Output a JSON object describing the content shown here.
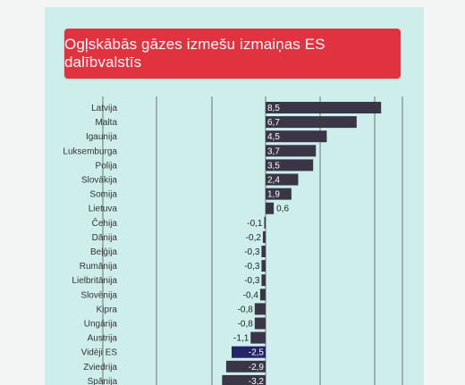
{
  "chart_data": {
    "type": "bar",
    "orientation": "horizontal",
    "title": "Ogļskābās gāzes izmešu izmaiņas ES dalībvalstīs",
    "categories": [
      "Latvija",
      "Malta",
      "Igaunija",
      "Luksemburga",
      "Polija",
      "Slovākija",
      "Somija",
      "Lietuva",
      "Čehija",
      "Dānija",
      "Beļģija",
      "Rumānija",
      "Lielbritānija",
      "Slovēnija",
      "Kipra",
      "Ungārija",
      "Austrija",
      "Vidēji ES",
      "Zviedrija",
      "Spānija"
    ],
    "values": [
      8.5,
      6.7,
      4.5,
      3.7,
      3.5,
      2.4,
      1.9,
      0.6,
      -0.1,
      -0.2,
      -0.3,
      -0.3,
      -0.3,
      -0.4,
      -0.8,
      -0.8,
      -1.1,
      -2.5,
      -2.9,
      -3.2
    ],
    "value_labels": [
      "8,5",
      "6,7",
      "4,5",
      "3,7",
      "3,5",
      "2,4",
      "1,9",
      "0,6",
      "-0,1",
      "-0,2",
      "-0,3",
      "-0,3",
      "-0,3",
      "-0,4",
      "-0,8",
      "-0,8",
      "-1,1",
      "-2,5",
      "-2,9",
      "-3,2"
    ],
    "highlight": "Vidēji ES",
    "colors": {
      "bar": "#3a3547",
      "highlight": "#262466",
      "title_bg": "#e1323f",
      "background": "#cdeeea",
      "grid": "#555555"
    },
    "grid": true,
    "legend": "none"
  }
}
